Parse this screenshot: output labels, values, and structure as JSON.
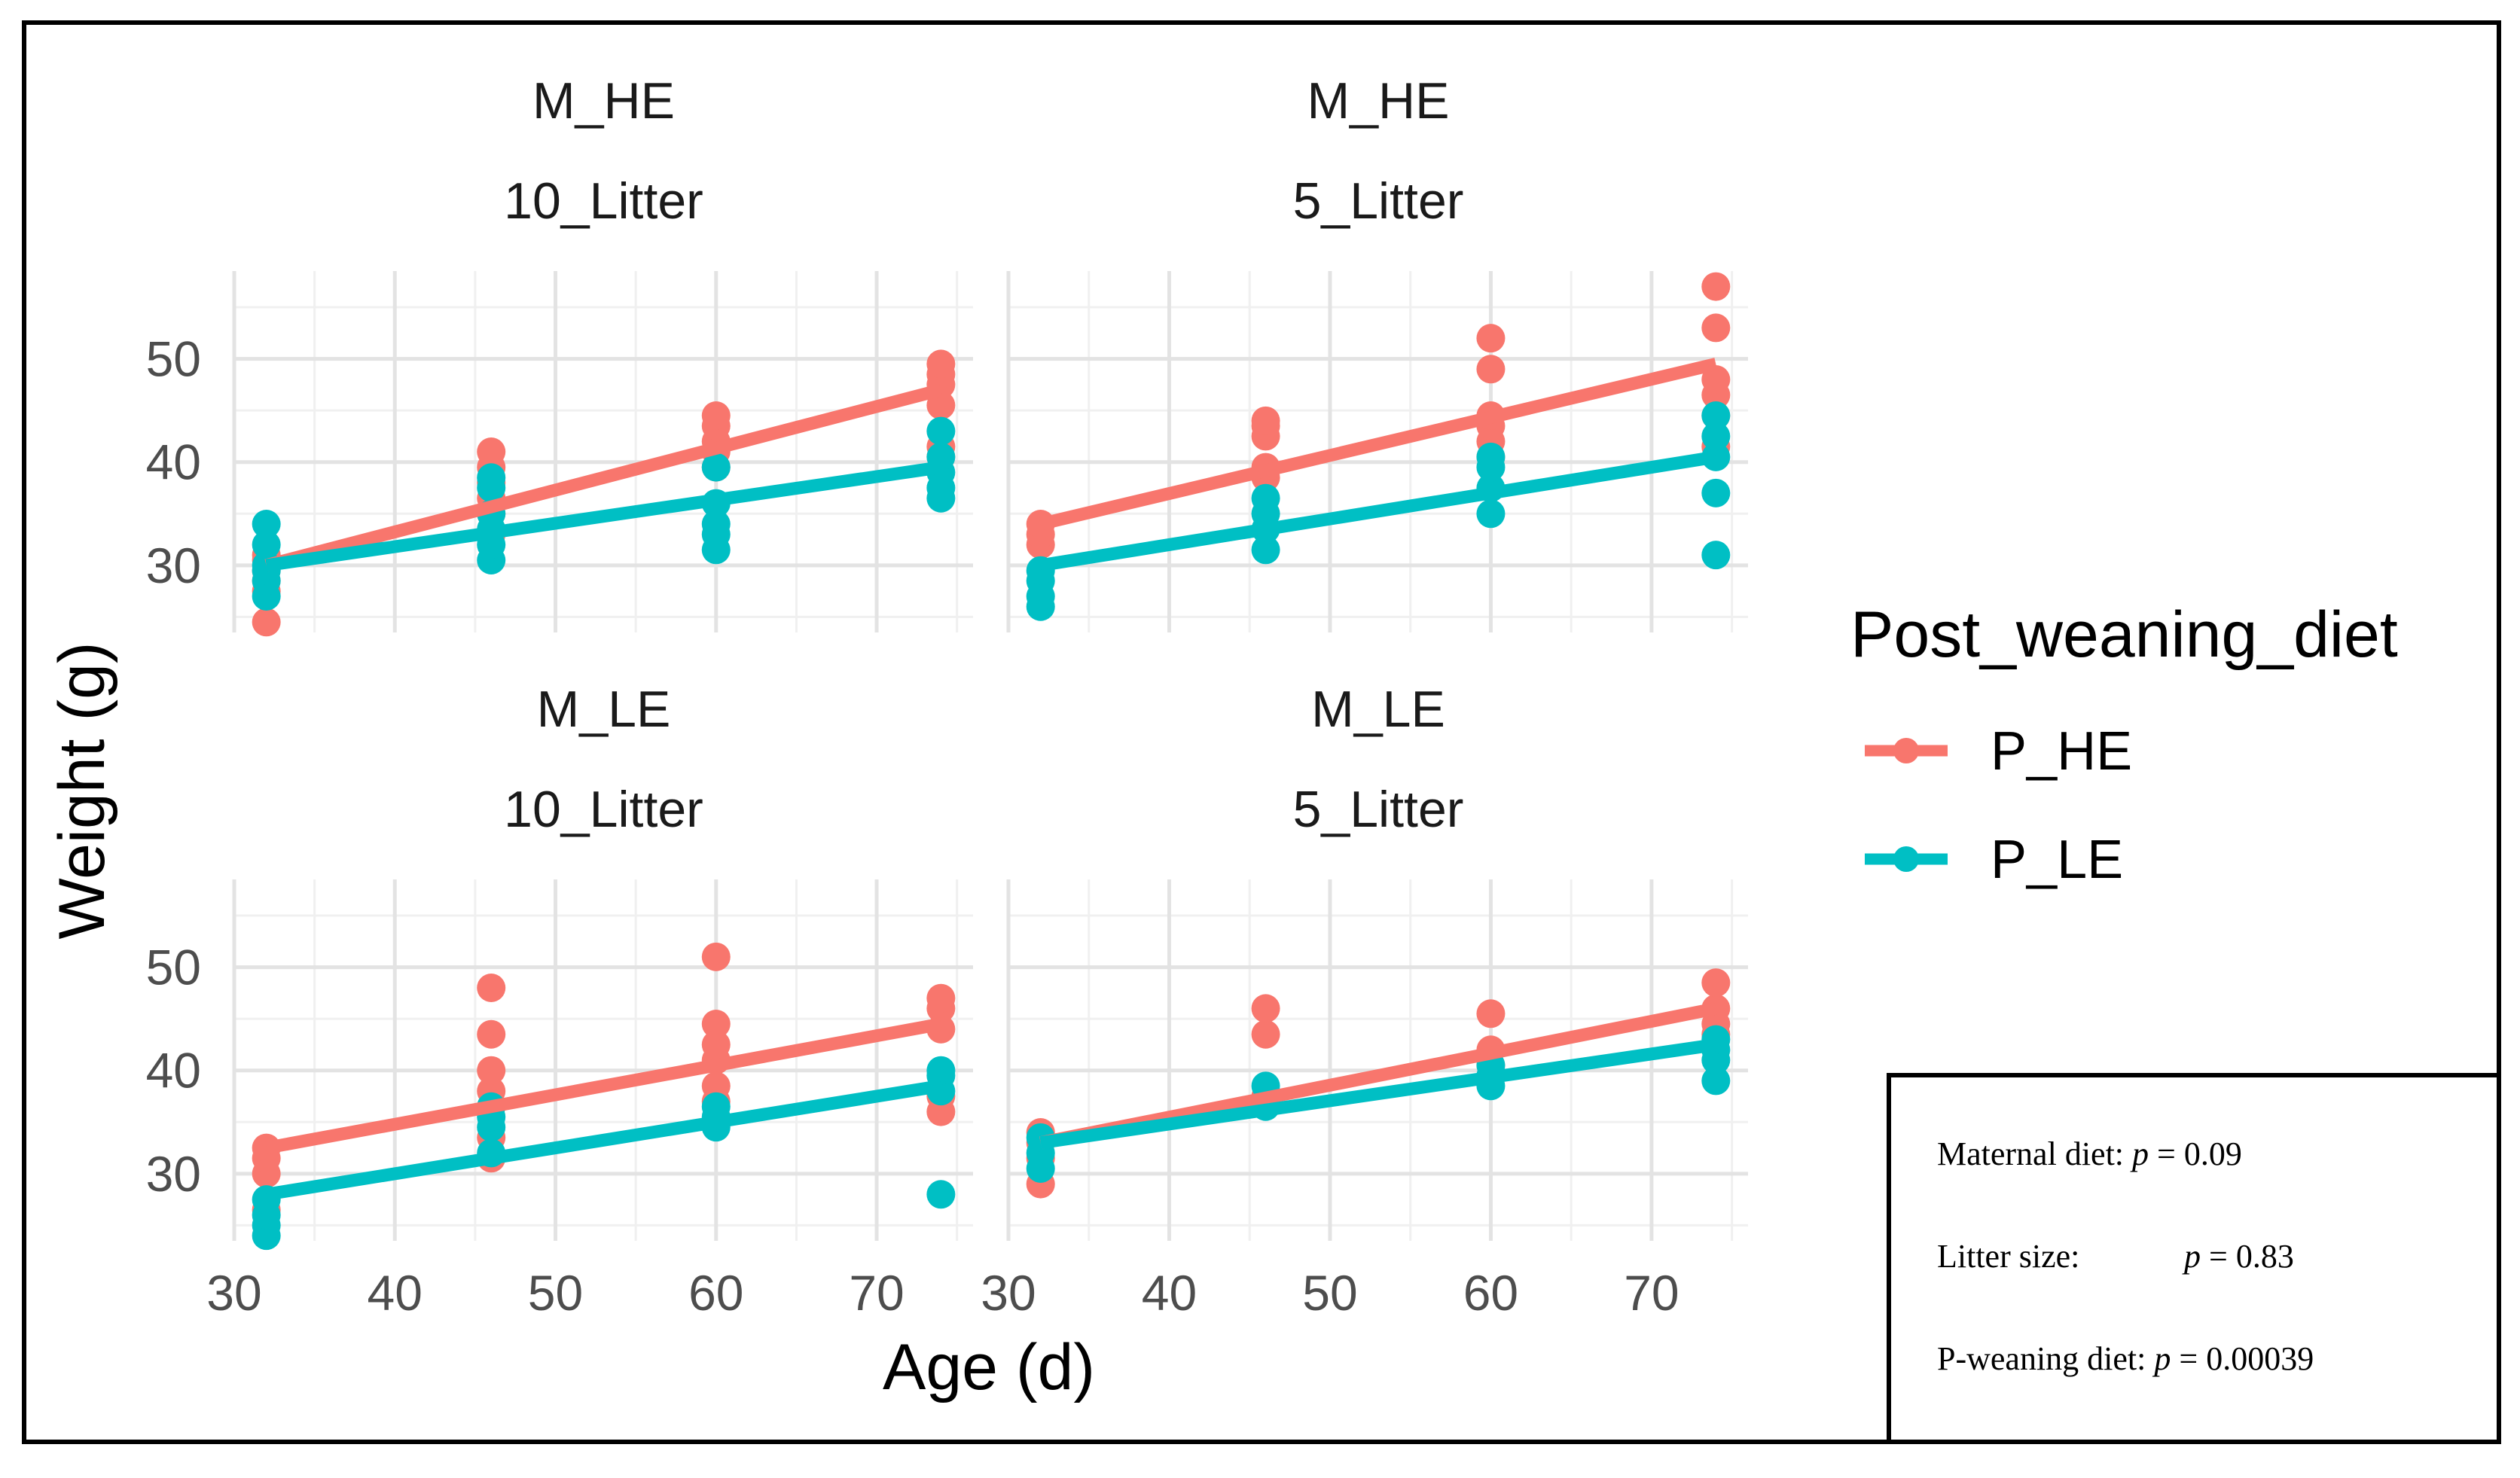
{
  "chart_data": {
    "type": "scatter",
    "facets": [
      {
        "row_label": "M_HE",
        "col_label": "10_Litter",
        "fit": {
          "P_HE": [
            [
              32,
              30.0
            ],
            [
              74,
              47.0
            ]
          ],
          "P_LE": [
            [
              32,
              30.0
            ],
            [
              74,
              39.5
            ]
          ]
        },
        "points": {
          "P_HE": [
            [
              32,
              24.5
            ],
            [
              32,
              27.5
            ],
            [
              32,
              28.5
            ],
            [
              32,
              29.5
            ],
            [
              32,
              30.5
            ],
            [
              32,
              31.0
            ],
            [
              46,
              33.0
            ],
            [
              46,
              35.0
            ],
            [
              46,
              36.5
            ],
            [
              46,
              38.0
            ],
            [
              46,
              39.5
            ],
            [
              46,
              41.0
            ],
            [
              60,
              39.5
            ],
            [
              60,
              41.0
            ],
            [
              60,
              42.0
            ],
            [
              60,
              43.5
            ],
            [
              60,
              44.5
            ],
            [
              74,
              40.5
            ],
            [
              74,
              41.5
            ],
            [
              74,
              45.5
            ],
            [
              74,
              47.5
            ],
            [
              74,
              48.5
            ],
            [
              74,
              49.5
            ]
          ],
          "P_LE": [
            [
              32,
              27.0
            ],
            [
              32,
              28.5
            ],
            [
              32,
              29.5
            ],
            [
              32,
              30.0
            ],
            [
              32,
              32.0
            ],
            [
              32,
              34.0
            ],
            [
              46,
              30.5
            ],
            [
              46,
              32.0
            ],
            [
              46,
              33.5
            ],
            [
              46,
              35.0
            ],
            [
              46,
              37.5
            ],
            [
              46,
              38.5
            ],
            [
              60,
              31.5
            ],
            [
              60,
              33.0
            ],
            [
              60,
              34.0
            ],
            [
              60,
              36.0
            ],
            [
              60,
              39.5
            ],
            [
              74,
              36.5
            ],
            [
              74,
              37.5
            ],
            [
              74,
              39.0
            ],
            [
              74,
              40.5
            ],
            [
              74,
              43.0
            ]
          ]
        }
      },
      {
        "row_label": "M_HE",
        "col_label": "5_Litter",
        "fit": {
          "P_HE": [
            [
              32,
              34.0
            ],
            [
              74,
              49.5
            ]
          ],
          "P_LE": [
            [
              32,
              30.0
            ],
            [
              74,
              40.5
            ]
          ]
        },
        "points": {
          "P_HE": [
            [
              32,
              32.0
            ],
            [
              32,
              33.0
            ],
            [
              32,
              34.0
            ],
            [
              46,
              38.5
            ],
            [
              46,
              39.5
            ],
            [
              46,
              42.5
            ],
            [
              46,
              43.5
            ],
            [
              46,
              44.0
            ],
            [
              60,
              40.5
            ],
            [
              60,
              42.0
            ],
            [
              60,
              43.5
            ],
            [
              60,
              44.5
            ],
            [
              60,
              49.0
            ],
            [
              60,
              52.0
            ],
            [
              74,
              41.5
            ],
            [
              74,
              44.5
            ],
            [
              74,
              46.5
            ],
            [
              74,
              48.0
            ],
            [
              74,
              53.0
            ],
            [
              74,
              57.0
            ]
          ],
          "P_LE": [
            [
              32,
              26.0
            ],
            [
              32,
              27.0
            ],
            [
              32,
              28.5
            ],
            [
              32,
              29.5
            ],
            [
              46,
              31.5
            ],
            [
              46,
              33.5
            ],
            [
              46,
              35.0
            ],
            [
              46,
              36.5
            ],
            [
              60,
              35.0
            ],
            [
              60,
              37.5
            ],
            [
              60,
              39.5
            ],
            [
              60,
              40.5
            ],
            [
              74,
              31.0
            ],
            [
              74,
              37.0
            ],
            [
              74,
              40.5
            ],
            [
              74,
              42.5
            ],
            [
              74,
              44.5
            ]
          ]
        }
      },
      {
        "row_label": "M_LE",
        "col_label": "10_Litter",
        "fit": {
          "P_HE": [
            [
              32,
              32.5
            ],
            [
              74,
              44.5
            ]
          ],
          "P_LE": [
            [
              32,
              28.0
            ],
            [
              74,
              38.5
            ]
          ]
        },
        "points": {
          "P_HE": [
            [
              32,
              26.5
            ],
            [
              32,
              30.0
            ],
            [
              32,
              31.5
            ],
            [
              32,
              32.5
            ],
            [
              46,
              31.5
            ],
            [
              46,
              33.5
            ],
            [
              46,
              36.5
            ],
            [
              46,
              38.0
            ],
            [
              46,
              40.0
            ],
            [
              46,
              43.5
            ],
            [
              46,
              48.0
            ],
            [
              60,
              35.0
            ],
            [
              60,
              37.0
            ],
            [
              60,
              38.5
            ],
            [
              60,
              41.0
            ],
            [
              60,
              42.5
            ],
            [
              60,
              44.5
            ],
            [
              60,
              51.0
            ],
            [
              74,
              36.0
            ],
            [
              74,
              37.5
            ],
            [
              74,
              44.0
            ],
            [
              74,
              46.0
            ],
            [
              74,
              47.0
            ]
          ],
          "P_LE": [
            [
              32,
              24.0
            ],
            [
              32,
              25.0
            ],
            [
              32,
              26.0
            ],
            [
              32,
              27.5
            ],
            [
              46,
              32.0
            ],
            [
              46,
              34.5
            ],
            [
              46,
              35.5
            ],
            [
              46,
              36.5
            ],
            [
              60,
              34.5
            ],
            [
              60,
              35.5
            ],
            [
              60,
              36.5
            ],
            [
              74,
              28.0
            ],
            [
              74,
              38.0
            ],
            [
              74,
              39.5
            ],
            [
              74,
              40.0
            ]
          ]
        }
      },
      {
        "row_label": "M_LE",
        "col_label": "5_Litter",
        "fit": {
          "P_HE": [
            [
              32,
              33.0
            ],
            [
              74,
              46.0
            ]
          ],
          "P_LE": [
            [
              32,
              33.0
            ],
            [
              74,
              42.5
            ]
          ]
        },
        "points": {
          "P_HE": [
            [
              32,
              29.0
            ],
            [
              32,
              31.5
            ],
            [
              32,
              33.0
            ],
            [
              32,
              34.0
            ],
            [
              46,
              37.5
            ],
            [
              46,
              43.5
            ],
            [
              46,
              46.0
            ],
            [
              60,
              40.5
            ],
            [
              60,
              42.0
            ],
            [
              60,
              45.5
            ],
            [
              74,
              43.5
            ],
            [
              74,
              44.5
            ],
            [
              74,
              46.0
            ],
            [
              74,
              48.5
            ]
          ],
          "P_LE": [
            [
              32,
              30.5
            ],
            [
              32,
              32.0
            ],
            [
              32,
              33.5
            ],
            [
              46,
              36.5
            ],
            [
              46,
              38.5
            ],
            [
              60,
              38.5
            ],
            [
              60,
              39.5
            ],
            [
              60,
              40.5
            ],
            [
              74,
              39.0
            ],
            [
              74,
              41.0
            ],
            [
              74,
              42.0
            ],
            [
              74,
              43.0
            ]
          ]
        }
      }
    ],
    "xlabel": "Age (d)",
    "ylabel": "Weight (g)",
    "xlim": [
      30,
      76
    ],
    "ylim": [
      23.5,
      58.5
    ],
    "xticks": [
      "30",
      "40",
      "50",
      "60",
      "70"
    ],
    "yticks": [
      "30",
      "40",
      "50"
    ],
    "legend": {
      "title": "Post_weaning_diet",
      "items": [
        {
          "label": "P_HE",
          "color": "#F8766D"
        },
        {
          "label": "P_LE",
          "color": "#00BFC4"
        }
      ]
    },
    "grid": true
  },
  "stats_box": {
    "maternal": {
      "label": "Maternal diet: ",
      "p": "p",
      "value": " = 0.09"
    },
    "litter": {
      "label": "Litter size:",
      "p": "p",
      "value": " = 0.83"
    },
    "weaning": {
      "label": "P-weaning diet: ",
      "p": "p",
      "value": " = 0.00039"
    }
  }
}
